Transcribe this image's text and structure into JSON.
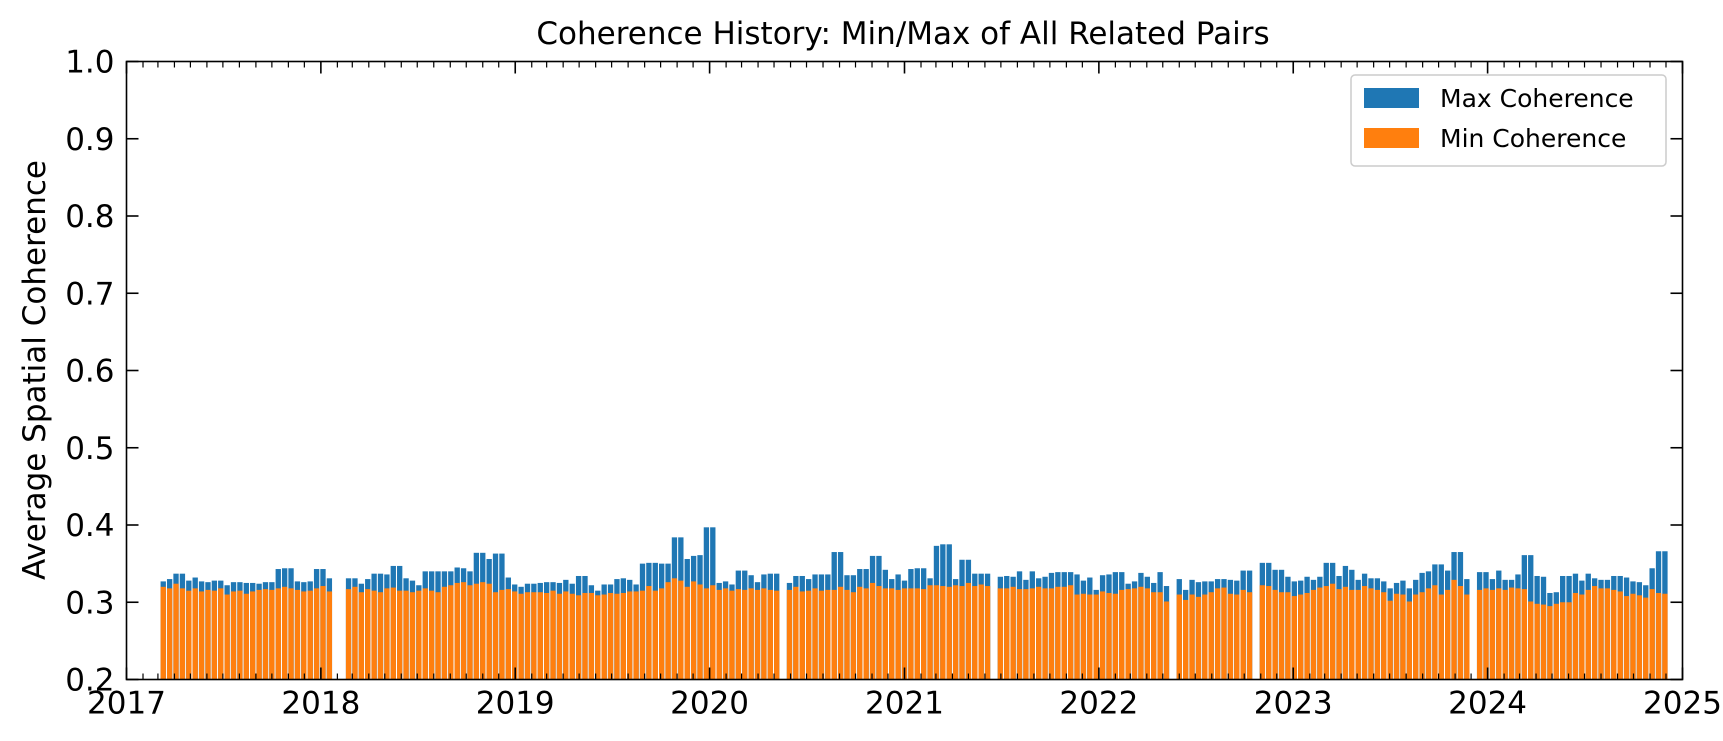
{
  "chart_data": {
    "type": "bar",
    "stacked": "overlay",
    "title": "Coherence History: Min/Max of All Related Pairs",
    "xlabel": "",
    "ylabel": "Average Spatial Coherence",
    "xlim": [
      "2017-01",
      "2025-01"
    ],
    "ylim": [
      0.2,
      1.0
    ],
    "x_ticks": [
      "2017",
      "2018",
      "2019",
      "2020",
      "2021",
      "2022",
      "2023",
      "2024",
      "2025"
    ],
    "y_ticks": [
      "0.2",
      "0.3",
      "0.4",
      "0.5",
      "0.6",
      "0.7",
      "0.8",
      "0.9",
      "1.0"
    ],
    "legend_position": "top-right",
    "grid": false,
    "series": [
      {
        "name": "Max Coherence",
        "color": "#1f77b4"
      },
      {
        "name": "Min Coherence",
        "color": "#ff7f0e"
      }
    ],
    "bars": [
      [
        "2017-03-11",
        0.327,
        0.32
      ],
      [
        "2017-03-23",
        0.33,
        0.318
      ],
      [
        "2017-04-04",
        0.337,
        0.324
      ],
      [
        "2017-04-16",
        0.337,
        0.318
      ],
      [
        "2017-04-28",
        0.328,
        0.315
      ],
      [
        "2017-05-10",
        0.332,
        0.318
      ],
      [
        "2017-05-22",
        0.327,
        0.314
      ],
      [
        "2017-06-03",
        0.326,
        0.316
      ],
      [
        "2017-06-15",
        0.328,
        0.315
      ],
      [
        "2017-06-27",
        0.328,
        0.318
      ],
      [
        "2017-07-09",
        0.322,
        0.31
      ],
      [
        "2017-07-21",
        0.326,
        0.314
      ],
      [
        "2017-08-02",
        0.326,
        0.315
      ],
      [
        "2017-08-14",
        0.325,
        0.311
      ],
      [
        "2017-08-26",
        0.325,
        0.314
      ],
      [
        "2017-09-07",
        0.324,
        0.316
      ],
      [
        "2017-09-19",
        0.326,
        0.317
      ],
      [
        "2017-10-01",
        0.326,
        0.316
      ],
      [
        "2017-10-13",
        0.343,
        0.318
      ],
      [
        "2017-10-25",
        0.344,
        0.32
      ],
      [
        "2017-11-06",
        0.344,
        0.318
      ],
      [
        "2017-11-18",
        0.327,
        0.316
      ],
      [
        "2017-11-30",
        0.326,
        0.314
      ],
      [
        "2017-12-12",
        0.327,
        0.315
      ],
      [
        "2017-12-24",
        0.343,
        0.318
      ],
      [
        "2018-01-05",
        0.343,
        0.321
      ],
      [
        "2018-01-17",
        0.331,
        0.314
      ],
      [
        "2018-02-22",
        0.331,
        0.317
      ],
      [
        "2018-03-06",
        0.331,
        0.32
      ],
      [
        "2018-03-18",
        0.324,
        0.313
      ],
      [
        "2018-03-30",
        0.33,
        0.317
      ],
      [
        "2018-04-11",
        0.337,
        0.315
      ],
      [
        "2018-04-23",
        0.337,
        0.313
      ],
      [
        "2018-05-05",
        0.336,
        0.318
      ],
      [
        "2018-05-17",
        0.347,
        0.319
      ],
      [
        "2018-05-29",
        0.347,
        0.315
      ],
      [
        "2018-06-10",
        0.331,
        0.315
      ],
      [
        "2018-06-22",
        0.328,
        0.313
      ],
      [
        "2018-07-04",
        0.322,
        0.315
      ],
      [
        "2018-07-16",
        0.34,
        0.318
      ],
      [
        "2018-07-28",
        0.34,
        0.315
      ],
      [
        "2018-08-09",
        0.34,
        0.313
      ],
      [
        "2018-08-21",
        0.34,
        0.32
      ],
      [
        "2018-09-02",
        0.34,
        0.322
      ],
      [
        "2018-09-14",
        0.345,
        0.325
      ],
      [
        "2018-09-26",
        0.344,
        0.326
      ],
      [
        "2018-10-08",
        0.34,
        0.322
      ],
      [
        "2018-10-20",
        0.364,
        0.324
      ],
      [
        "2018-11-01",
        0.364,
        0.326
      ],
      [
        "2018-11-13",
        0.356,
        0.324
      ],
      [
        "2018-11-25",
        0.363,
        0.313
      ],
      [
        "2018-12-07",
        0.363,
        0.316
      ],
      [
        "2018-12-19",
        0.332,
        0.317
      ],
      [
        "2018-12-31",
        0.323,
        0.314
      ],
      [
        "2019-01-12",
        0.32,
        0.311
      ],
      [
        "2019-01-24",
        0.324,
        0.313
      ],
      [
        "2019-02-05",
        0.324,
        0.313
      ],
      [
        "2019-02-17",
        0.325,
        0.313
      ],
      [
        "2019-03-01",
        0.326,
        0.312
      ],
      [
        "2019-03-13",
        0.326,
        0.315
      ],
      [
        "2019-03-25",
        0.325,
        0.311
      ],
      [
        "2019-04-06",
        0.329,
        0.314
      ],
      [
        "2019-04-18",
        0.324,
        0.311
      ],
      [
        "2019-04-30",
        0.334,
        0.309
      ],
      [
        "2019-05-12",
        0.334,
        0.312
      ],
      [
        "2019-05-24",
        0.322,
        0.312
      ],
      [
        "2019-06-05",
        0.315,
        0.309
      ],
      [
        "2019-06-17",
        0.323,
        0.31
      ],
      [
        "2019-06-29",
        0.323,
        0.312
      ],
      [
        "2019-07-11",
        0.33,
        0.311
      ],
      [
        "2019-07-23",
        0.331,
        0.312
      ],
      [
        "2019-08-04",
        0.329,
        0.314
      ],
      [
        "2019-08-16",
        0.323,
        0.314
      ],
      [
        "2019-08-28",
        0.35,
        0.315
      ],
      [
        "2019-09-09",
        0.351,
        0.321
      ],
      [
        "2019-09-21",
        0.351,
        0.315
      ],
      [
        "2019-10-03",
        0.35,
        0.318
      ],
      [
        "2019-10-15",
        0.35,
        0.326
      ],
      [
        "2019-10-27",
        0.384,
        0.331
      ],
      [
        "2019-11-08",
        0.384,
        0.328
      ],
      [
        "2019-11-20",
        0.356,
        0.32
      ],
      [
        "2019-12-02",
        0.36,
        0.327
      ],
      [
        "2019-12-14",
        0.361,
        0.323
      ],
      [
        "2019-12-26",
        0.397,
        0.318
      ],
      [
        "2020-01-07",
        0.397,
        0.322
      ],
      [
        "2020-01-19",
        0.325,
        0.316
      ],
      [
        "2020-01-31",
        0.327,
        0.318
      ],
      [
        "2020-02-12",
        0.323,
        0.315
      ],
      [
        "2020-02-24",
        0.341,
        0.317
      ],
      [
        "2020-03-07",
        0.341,
        0.316
      ],
      [
        "2020-03-19",
        0.335,
        0.318
      ],
      [
        "2020-03-31",
        0.326,
        0.316
      ],
      [
        "2020-04-12",
        0.336,
        0.318
      ],
      [
        "2020-04-24",
        0.337,
        0.316
      ],
      [
        "2020-05-06",
        0.337,
        0.315
      ],
      [
        "2020-05-30",
        0.325,
        0.316
      ],
      [
        "2020-06-11",
        0.334,
        0.32
      ],
      [
        "2020-06-23",
        0.334,
        0.314
      ],
      [
        "2020-07-05",
        0.33,
        0.315
      ],
      [
        "2020-07-17",
        0.336,
        0.318
      ],
      [
        "2020-07-29",
        0.336,
        0.315
      ],
      [
        "2020-08-10",
        0.336,
        0.316
      ],
      [
        "2020-08-22",
        0.365,
        0.316
      ],
      [
        "2020-09-03",
        0.365,
        0.32
      ],
      [
        "2020-09-15",
        0.335,
        0.316
      ],
      [
        "2020-09-27",
        0.335,
        0.313
      ],
      [
        "2020-10-09",
        0.343,
        0.32
      ],
      [
        "2020-10-21",
        0.343,
        0.318
      ],
      [
        "2020-11-02",
        0.36,
        0.325
      ],
      [
        "2020-11-14",
        0.36,
        0.321
      ],
      [
        "2020-11-26",
        0.342,
        0.318
      ],
      [
        "2020-12-08",
        0.33,
        0.318
      ],
      [
        "2020-12-20",
        0.336,
        0.316
      ],
      [
        "2021-01-01",
        0.328,
        0.318
      ],
      [
        "2021-01-13",
        0.343,
        0.318
      ],
      [
        "2021-01-25",
        0.344,
        0.318
      ],
      [
        "2021-02-06",
        0.344,
        0.317
      ],
      [
        "2021-02-18",
        0.331,
        0.322
      ],
      [
        "2021-03-02",
        0.373,
        0.322
      ],
      [
        "2021-03-14",
        0.375,
        0.321
      ],
      [
        "2021-03-26",
        0.375,
        0.32
      ],
      [
        "2021-04-07",
        0.33,
        0.322
      ],
      [
        "2021-04-19",
        0.355,
        0.321
      ],
      [
        "2021-05-01",
        0.355,
        0.325
      ],
      [
        "2021-05-13",
        0.337,
        0.321
      ],
      [
        "2021-05-25",
        0.337,
        0.323
      ],
      [
        "2021-06-06",
        0.337,
        0.321
      ],
      [
        "2021-06-30",
        0.333,
        0.318
      ],
      [
        "2021-07-12",
        0.334,
        0.318
      ],
      [
        "2021-07-24",
        0.333,
        0.32
      ],
      [
        "2021-08-05",
        0.34,
        0.317
      ],
      [
        "2021-08-17",
        0.329,
        0.317
      ],
      [
        "2021-08-29",
        0.34,
        0.318
      ],
      [
        "2021-09-10",
        0.331,
        0.32
      ],
      [
        "2021-09-22",
        0.333,
        0.318
      ],
      [
        "2021-10-04",
        0.338,
        0.318
      ],
      [
        "2021-10-16",
        0.339,
        0.32
      ],
      [
        "2021-10-28",
        0.339,
        0.32
      ],
      [
        "2021-11-09",
        0.339,
        0.322
      ],
      [
        "2021-11-21",
        0.336,
        0.31
      ],
      [
        "2021-12-03",
        0.328,
        0.311
      ],
      [
        "2021-12-15",
        0.332,
        0.31
      ],
      [
        "2021-12-27",
        0.316,
        0.31
      ],
      [
        "2022-01-08",
        0.335,
        0.314
      ],
      [
        "2022-01-20",
        0.336,
        0.312
      ],
      [
        "2022-02-01",
        0.339,
        0.311
      ],
      [
        "2022-02-13",
        0.339,
        0.316
      ],
      [
        "2022-02-25",
        0.324,
        0.317
      ],
      [
        "2022-03-09",
        0.327,
        0.318
      ],
      [
        "2022-03-21",
        0.338,
        0.32
      ],
      [
        "2022-04-02",
        0.333,
        0.318
      ],
      [
        "2022-04-14",
        0.325,
        0.313
      ],
      [
        "2022-04-26",
        0.339,
        0.313
      ],
      [
        "2022-05-08",
        0.321,
        0.301
      ],
      [
        "2022-06-01",
        0.33,
        0.31
      ],
      [
        "2022-06-13",
        0.316,
        0.303
      ],
      [
        "2022-06-25",
        0.329,
        0.31
      ],
      [
        "2022-07-07",
        0.326,
        0.307
      ],
      [
        "2022-07-19",
        0.327,
        0.31
      ],
      [
        "2022-07-31",
        0.327,
        0.313
      ],
      [
        "2022-08-12",
        0.33,
        0.318
      ],
      [
        "2022-08-24",
        0.33,
        0.319
      ],
      [
        "2022-09-05",
        0.329,
        0.311
      ],
      [
        "2022-09-17",
        0.328,
        0.31
      ],
      [
        "2022-09-29",
        0.341,
        0.316
      ],
      [
        "2022-10-11",
        0.341,
        0.313
      ],
      [
        "2022-11-04",
        0.351,
        0.322
      ],
      [
        "2022-11-16",
        0.351,
        0.321
      ],
      [
        "2022-11-28",
        0.342,
        0.316
      ],
      [
        "2022-12-10",
        0.342,
        0.313
      ],
      [
        "2022-12-22",
        0.333,
        0.313
      ],
      [
        "2023-01-03",
        0.327,
        0.308
      ],
      [
        "2023-01-15",
        0.328,
        0.31
      ],
      [
        "2023-01-27",
        0.333,
        0.312
      ],
      [
        "2023-02-08",
        0.329,
        0.316
      ],
      [
        "2023-02-20",
        0.333,
        0.319
      ],
      [
        "2023-03-04",
        0.351,
        0.321
      ],
      [
        "2023-03-16",
        0.351,
        0.324
      ],
      [
        "2023-03-28",
        0.334,
        0.317
      ],
      [
        "2023-04-09",
        0.347,
        0.32
      ],
      [
        "2023-04-21",
        0.342,
        0.316
      ],
      [
        "2023-05-03",
        0.329,
        0.316
      ],
      [
        "2023-05-15",
        0.337,
        0.321
      ],
      [
        "2023-05-27",
        0.331,
        0.318
      ],
      [
        "2023-06-08",
        0.331,
        0.316
      ],
      [
        "2023-06-20",
        0.327,
        0.313
      ],
      [
        "2023-07-02",
        0.318,
        0.302
      ],
      [
        "2023-07-14",
        0.325,
        0.311
      ],
      [
        "2023-07-26",
        0.328,
        0.31
      ],
      [
        "2023-08-07",
        0.318,
        0.301
      ],
      [
        "2023-08-19",
        0.329,
        0.31
      ],
      [
        "2023-08-31",
        0.338,
        0.313
      ],
      [
        "2023-09-12",
        0.34,
        0.318
      ],
      [
        "2023-09-24",
        0.349,
        0.322
      ],
      [
        "2023-10-06",
        0.349,
        0.31
      ],
      [
        "2023-10-18",
        0.341,
        0.316
      ],
      [
        "2023-10-30",
        0.365,
        0.329
      ],
      [
        "2023-11-11",
        0.365,
        0.321
      ],
      [
        "2023-11-23",
        0.33,
        0.31
      ],
      [
        "2023-12-17",
        0.339,
        0.316
      ],
      [
        "2023-12-29",
        0.339,
        0.318
      ],
      [
        "2024-01-10",
        0.33,
        0.316
      ],
      [
        "2024-01-22",
        0.341,
        0.318
      ],
      [
        "2024-02-03",
        0.329,
        0.316
      ],
      [
        "2024-02-15",
        0.329,
        0.319
      ],
      [
        "2024-02-27",
        0.336,
        0.318
      ],
      [
        "2024-03-10",
        0.361,
        0.317
      ],
      [
        "2024-03-22",
        0.361,
        0.301
      ],
      [
        "2024-04-03",
        0.334,
        0.298
      ],
      [
        "2024-04-15",
        0.333,
        0.297
      ],
      [
        "2024-04-27",
        0.312,
        0.295
      ],
      [
        "2024-05-09",
        0.313,
        0.298
      ],
      [
        "2024-05-21",
        0.334,
        0.3
      ],
      [
        "2024-06-02",
        0.334,
        0.3
      ],
      [
        "2024-06-14",
        0.337,
        0.312
      ],
      [
        "2024-06-26",
        0.328,
        0.31
      ],
      [
        "2024-07-08",
        0.337,
        0.316
      ],
      [
        "2024-07-20",
        0.331,
        0.321
      ],
      [
        "2024-08-01",
        0.329,
        0.318
      ],
      [
        "2024-08-13",
        0.329,
        0.318
      ],
      [
        "2024-08-25",
        0.334,
        0.316
      ],
      [
        "2024-09-06",
        0.334,
        0.314
      ],
      [
        "2024-09-18",
        0.332,
        0.308
      ],
      [
        "2024-09-30",
        0.327,
        0.311
      ],
      [
        "2024-10-12",
        0.326,
        0.309
      ],
      [
        "2024-10-24",
        0.322,
        0.306
      ],
      [
        "2024-11-05",
        0.344,
        0.317
      ],
      [
        "2024-11-17",
        0.366,
        0.312
      ],
      [
        "2024-11-29",
        0.366,
        0.311
      ]
    ]
  }
}
